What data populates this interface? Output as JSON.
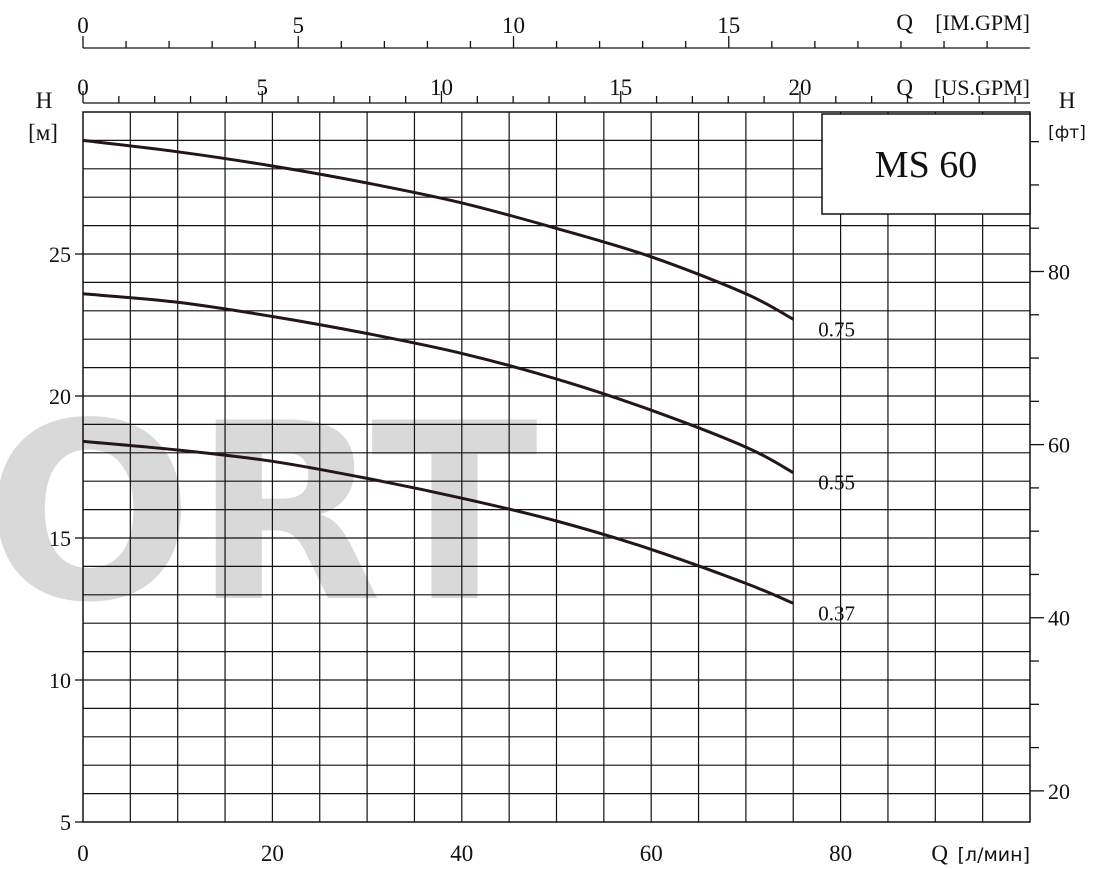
{
  "chart_data": {
    "type": "line",
    "model_label": "MS 60",
    "watermark": "ORT",
    "x": [
      0,
      10,
      20,
      30,
      40,
      50,
      60,
      70,
      75
    ],
    "series": [
      {
        "name": "0.75",
        "values": [
          29.0,
          28.6,
          28.1,
          27.5,
          26.8,
          25.9,
          24.9,
          23.6,
          22.7
        ]
      },
      {
        "name": "0.55",
        "values": [
          23.6,
          23.3,
          22.8,
          22.2,
          21.5,
          20.6,
          19.5,
          18.2,
          17.3
        ]
      },
      {
        "name": "0.37",
        "values": [
          18.4,
          18.1,
          17.7,
          17.1,
          16.4,
          15.6,
          14.6,
          13.4,
          12.7
        ]
      }
    ],
    "xlim": [
      0,
      100
    ],
    "ylim": [
      5,
      30
    ],
    "grid": true,
    "axes": {
      "x_bottom": {
        "label_q": "Q",
        "label_unit": "л/мин",
        "ticks": [
          0,
          20,
          40,
          60,
          80
        ],
        "minor_step": 5
      },
      "x_us_gpm": {
        "label_q": "Q",
        "label_unit": "US.GPM",
        "ticks": [
          0,
          5,
          10,
          15,
          20
        ],
        "minor_step": 1
      },
      "x_im_gpm": {
        "label_q": "Q",
        "label_unit": "IM.GPM",
        "ticks": [
          0,
          5,
          10,
          15
        ],
        "minor_step": 1
      },
      "y_left": {
        "label_h": "H",
        "label_unit": "м",
        "ticks": [
          5,
          10,
          15,
          20,
          25
        ],
        "minor_step": 1
      },
      "y_right": {
        "label_h": "H",
        "label_unit": "фт",
        "ticks": [
          20,
          40,
          60,
          80
        ],
        "minor_step": 5
      }
    },
    "tick_labels": {
      "x_bottom": [
        "0",
        "20",
        "40",
        "60",
        "80"
      ],
      "x_us_gpm": [
        "0",
        "5",
        "10",
        "15",
        "20"
      ],
      "x_im_gpm": [
        "0",
        "5",
        "10",
        "15"
      ],
      "y_left": [
        "5",
        "10",
        "15",
        "20",
        "25"
      ],
      "y_right": [
        "20",
        "40",
        "60",
        "80"
      ]
    }
  }
}
